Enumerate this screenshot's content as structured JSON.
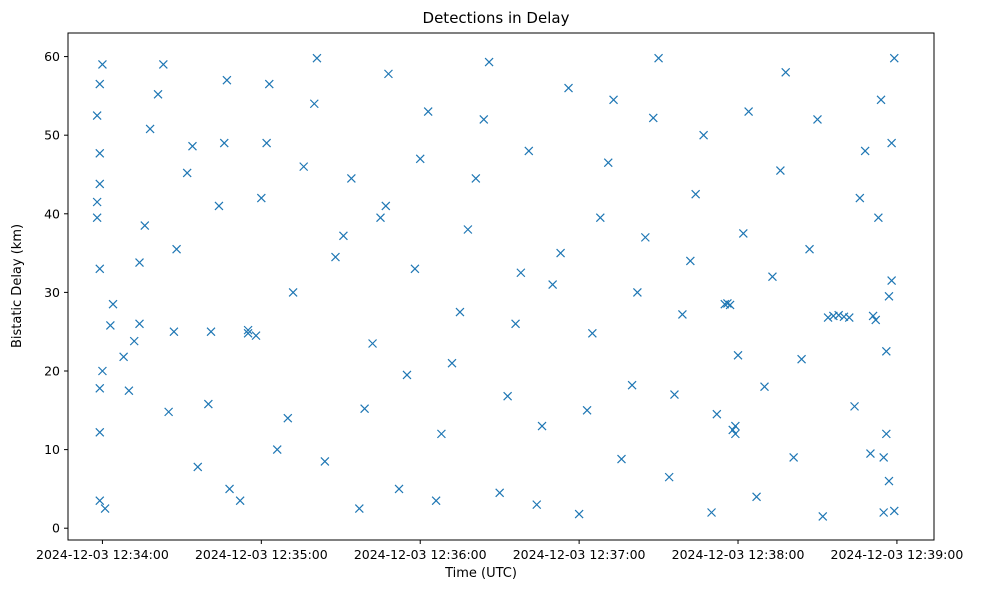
{
  "chart_data": {
    "type": "scatter",
    "title": "Detections in Delay",
    "xlabel": "Time (UTC)",
    "ylabel": "Bistatic Delay (km)",
    "x_ticks": [
      "2024-12-03 12:34:00",
      "2024-12-03 12:35:00",
      "2024-12-03 12:36:00",
      "2024-12-03 12:37:00",
      "2024-12-03 12:38:00",
      "2024-12-03 12:39:00"
    ],
    "y_ticks": [
      "0",
      "10",
      "20",
      "30",
      "40",
      "50",
      "60"
    ],
    "xlim": [
      "2024-12-03 12:33:47",
      "2024-12-03 12:39:14"
    ],
    "ylim": [
      -1.5,
      63
    ],
    "grid": false,
    "legend": "none",
    "marker": "x",
    "marker_color": "#1f77b4",
    "series": [
      {
        "values": [
          [
            "2024-12-03 12:33:59",
            3.5
          ],
          [
            "2024-12-03 12:34:01",
            2.5
          ],
          [
            "2024-12-03 12:33:59",
            12.2
          ],
          [
            "2024-12-03 12:34:00",
            20.0
          ],
          [
            "2024-12-03 12:33:59",
            17.8
          ],
          [
            "2024-12-03 12:33:59",
            33.0
          ],
          [
            "2024-12-03 12:33:58",
            39.5
          ],
          [
            "2024-12-03 12:33:58",
            41.5
          ],
          [
            "2024-12-03 12:33:59",
            43.8
          ],
          [
            "2024-12-03 12:33:59",
            47.7
          ],
          [
            "2024-12-03 12:33:58",
            52.5
          ],
          [
            "2024-12-03 12:33:59",
            56.5
          ],
          [
            "2024-12-03 12:34:00",
            59.0
          ],
          [
            "2024-12-03 12:34:03",
            25.8
          ],
          [
            "2024-12-03 12:34:04",
            28.5
          ],
          [
            "2024-12-03 12:34:08",
            21.8
          ],
          [
            "2024-12-03 12:34:10",
            17.5
          ],
          [
            "2024-12-03 12:34:12",
            23.8
          ],
          [
            "2024-12-03 12:34:14",
            26.0
          ],
          [
            "2024-12-03 12:34:14",
            33.8
          ],
          [
            "2024-12-03 12:34:16",
            38.5
          ],
          [
            "2024-12-03 12:34:18",
            50.8
          ],
          [
            "2024-12-03 12:34:21",
            55.2
          ],
          [
            "2024-12-03 12:34:23",
            59.0
          ],
          [
            "2024-12-03 12:34:25",
            14.8
          ],
          [
            "2024-12-03 12:34:27",
            25.0
          ],
          [
            "2024-12-03 12:34:28",
            35.5
          ],
          [
            "2024-12-03 12:34:32",
            45.2
          ],
          [
            "2024-12-03 12:34:34",
            48.6
          ],
          [
            "2024-12-03 12:34:36",
            7.8
          ],
          [
            "2024-12-03 12:34:40",
            15.8
          ],
          [
            "2024-12-03 12:34:41",
            25.0
          ],
          [
            "2024-12-03 12:34:44",
            41.0
          ],
          [
            "2024-12-03 12:34:46",
            49.0
          ],
          [
            "2024-12-03 12:34:47",
            57.0
          ],
          [
            "2024-12-03 12:34:48",
            5.0
          ],
          [
            "2024-12-03 12:34:52",
            3.5
          ],
          [
            "2024-12-03 12:34:55",
            24.8
          ],
          [
            "2024-12-03 12:34:55",
            25.2
          ],
          [
            "2024-12-03 12:34:58",
            24.5
          ],
          [
            "2024-12-03 12:35:00",
            42.0
          ],
          [
            "2024-12-03 12:35:02",
            49.0
          ],
          [
            "2024-12-03 12:35:03",
            56.5
          ],
          [
            "2024-12-03 12:35:06",
            10.0
          ],
          [
            "2024-12-03 12:35:10",
            14.0
          ],
          [
            "2024-12-03 12:35:12",
            30.0
          ],
          [
            "2024-12-03 12:35:16",
            46.0
          ],
          [
            "2024-12-03 12:35:20",
            54.0
          ],
          [
            "2024-12-03 12:35:21",
            59.8
          ],
          [
            "2024-12-03 12:35:24",
            8.5
          ],
          [
            "2024-12-03 12:35:28",
            34.5
          ],
          [
            "2024-12-03 12:35:31",
            37.2
          ],
          [
            "2024-12-03 12:35:34",
            44.5
          ],
          [
            "2024-12-03 12:35:37",
            2.5
          ],
          [
            "2024-12-03 12:35:39",
            15.2
          ],
          [
            "2024-12-03 12:35:42",
            23.5
          ],
          [
            "2024-12-03 12:35:45",
            39.5
          ],
          [
            "2024-12-03 12:35:47",
            41.0
          ],
          [
            "2024-12-03 12:35:48",
            57.8
          ],
          [
            "2024-12-03 12:35:52",
            5.0
          ],
          [
            "2024-12-03 12:35:55",
            19.5
          ],
          [
            "2024-12-03 12:35:58",
            33.0
          ],
          [
            "2024-12-03 12:36:00",
            47.0
          ],
          [
            "2024-12-03 12:36:03",
            53.0
          ],
          [
            "2024-12-03 12:36:06",
            3.5
          ],
          [
            "2024-12-03 12:36:08",
            12.0
          ],
          [
            "2024-12-03 12:36:12",
            21.0
          ],
          [
            "2024-12-03 12:36:15",
            27.5
          ],
          [
            "2024-12-03 12:36:18",
            38.0
          ],
          [
            "2024-12-03 12:36:21",
            44.5
          ],
          [
            "2024-12-03 12:36:24",
            52.0
          ],
          [
            "2024-12-03 12:36:26",
            59.3
          ],
          [
            "2024-12-03 12:36:30",
            4.5
          ],
          [
            "2024-12-03 12:36:33",
            16.8
          ],
          [
            "2024-12-03 12:36:36",
            26.0
          ],
          [
            "2024-12-03 12:36:38",
            32.5
          ],
          [
            "2024-12-03 12:36:41",
            48.0
          ],
          [
            "2024-12-03 12:36:44",
            3.0
          ],
          [
            "2024-12-03 12:36:46",
            13.0
          ],
          [
            "2024-12-03 12:36:50",
            31.0
          ],
          [
            "2024-12-03 12:36:53",
            35.0
          ],
          [
            "2024-12-03 12:36:56",
            56.0
          ],
          [
            "2024-12-03 12:37:00",
            1.8
          ],
          [
            "2024-12-03 12:37:03",
            15.0
          ],
          [
            "2024-12-03 12:37:05",
            24.8
          ],
          [
            "2024-12-03 12:37:08",
            39.5
          ],
          [
            "2024-12-03 12:37:11",
            46.5
          ],
          [
            "2024-12-03 12:37:13",
            54.5
          ],
          [
            "2024-12-03 12:37:16",
            8.8
          ],
          [
            "2024-12-03 12:37:20",
            18.2
          ],
          [
            "2024-12-03 12:37:22",
            30.0
          ],
          [
            "2024-12-03 12:37:25",
            37.0
          ],
          [
            "2024-12-03 12:37:28",
            52.2
          ],
          [
            "2024-12-03 12:37:30",
            59.8
          ],
          [
            "2024-12-03 12:37:34",
            6.5
          ],
          [
            "2024-12-03 12:37:36",
            17.0
          ],
          [
            "2024-12-03 12:37:39",
            27.2
          ],
          [
            "2024-12-03 12:37:42",
            34.0
          ],
          [
            "2024-12-03 12:37:44",
            42.5
          ],
          [
            "2024-12-03 12:37:47",
            50.0
          ],
          [
            "2024-12-03 12:37:50",
            2.0
          ],
          [
            "2024-12-03 12:37:52",
            14.5
          ],
          [
            "2024-12-03 12:37:55",
            28.5
          ],
          [
            "2024-12-03 12:37:56",
            28.6
          ],
          [
            "2024-12-03 12:37:57",
            28.4
          ],
          [
            "2024-12-03 12:37:58",
            12.5
          ],
          [
            "2024-12-03 12:37:59",
            13.0
          ],
          [
            "2024-12-03 12:37:59",
            12.0
          ],
          [
            "2024-12-03 12:38:00",
            22.0
          ],
          [
            "2024-12-03 12:38:02",
            37.5
          ],
          [
            "2024-12-03 12:38:04",
            53.0
          ],
          [
            "2024-12-03 12:38:07",
            4.0
          ],
          [
            "2024-12-03 12:38:10",
            18.0
          ],
          [
            "2024-12-03 12:38:13",
            32.0
          ],
          [
            "2024-12-03 12:38:16",
            45.5
          ],
          [
            "2024-12-03 12:38:18",
            58.0
          ],
          [
            "2024-12-03 12:38:21",
            9.0
          ],
          [
            "2024-12-03 12:38:24",
            21.5
          ],
          [
            "2024-12-03 12:38:27",
            35.5
          ],
          [
            "2024-12-03 12:38:30",
            52.0
          ],
          [
            "2024-12-03 12:38:32",
            1.5
          ],
          [
            "2024-12-03 12:38:34",
            26.8
          ],
          [
            "2024-12-03 12:38:36",
            27.0
          ],
          [
            "2024-12-03 12:38:38",
            27.1
          ],
          [
            "2024-12-03 12:38:40",
            26.9
          ],
          [
            "2024-12-03 12:38:42",
            26.8
          ],
          [
            "2024-12-03 12:38:44",
            15.5
          ],
          [
            "2024-12-03 12:38:46",
            42.0
          ],
          [
            "2024-12-03 12:38:48",
            48.0
          ],
          [
            "2024-12-03 12:38:50",
            9.5
          ],
          [
            "2024-12-03 12:38:51",
            27.0
          ],
          [
            "2024-12-03 12:38:52",
            26.5
          ],
          [
            "2024-12-03 12:38:53",
            39.5
          ],
          [
            "2024-12-03 12:38:54",
            54.5
          ],
          [
            "2024-12-03 12:38:55",
            2.0
          ],
          [
            "2024-12-03 12:38:56",
            12.0
          ],
          [
            "2024-12-03 12:38:56",
            22.5
          ],
          [
            "2024-12-03 12:38:57",
            29.5
          ],
          [
            "2024-12-03 12:38:58",
            49.0
          ],
          [
            "2024-12-03 12:38:59",
            59.8
          ],
          [
            "2024-12-03 12:38:59",
            2.2
          ],
          [
            "2024-12-03 12:38:57",
            6.0
          ],
          [
            "2024-12-03 12:38:55",
            9.0
          ],
          [
            "2024-12-03 12:38:58",
            31.5
          ]
        ]
      }
    ]
  }
}
